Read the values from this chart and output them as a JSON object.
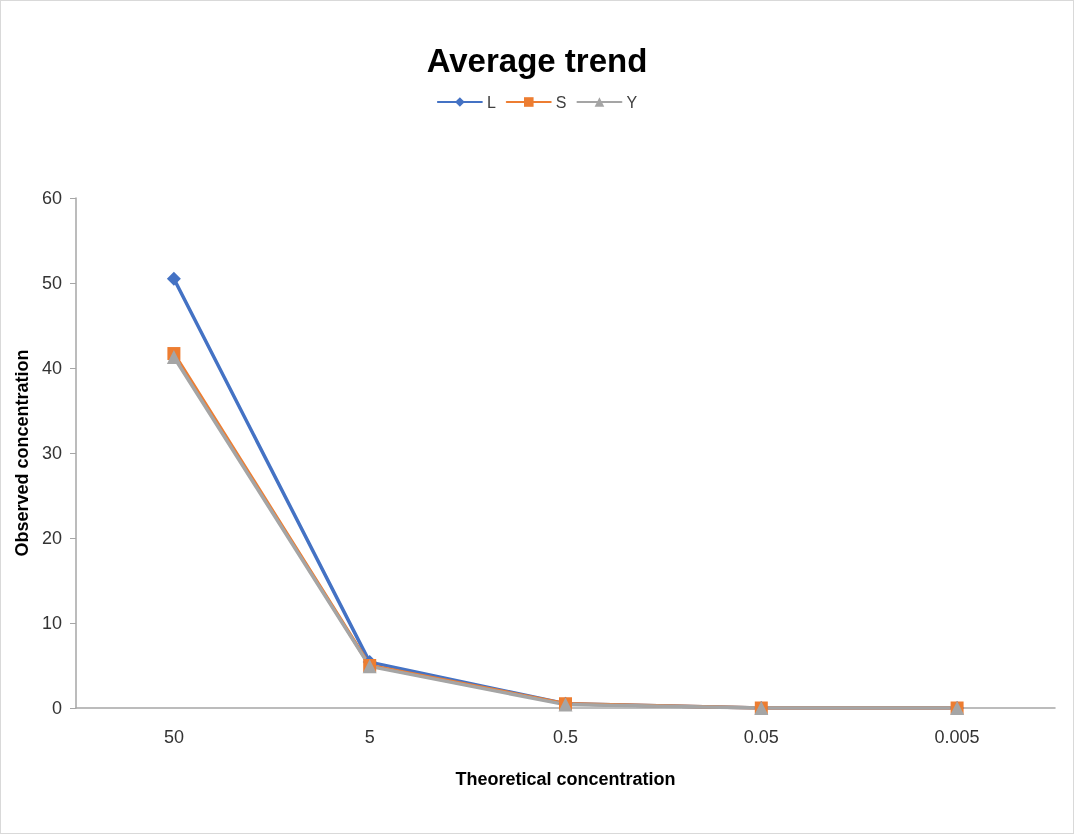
{
  "chart_data": {
    "type": "line",
    "title": "Average trend",
    "xlabel": "Theoretical concentration",
    "ylabel": "Observed concentration",
    "categories": [
      "50",
      "5",
      "0.5",
      "0.05",
      "0.005"
    ],
    "series": [
      {
        "name": "L",
        "color": "#4472c4",
        "marker": "diamond",
        "values": [
          50.5,
          5.4,
          0.5,
          0,
          0
        ]
      },
      {
        "name": "S",
        "color": "#ed7d31",
        "marker": "square",
        "values": [
          41.7,
          5.0,
          0.5,
          0,
          0
        ]
      },
      {
        "name": "Y",
        "color": "#a5a5a5",
        "marker": "triangle",
        "values": [
          41.3,
          4.9,
          0.4,
          0,
          0
        ]
      }
    ],
    "ylim": [
      0,
      60
    ],
    "yticks": [
      0,
      10,
      20,
      30,
      40,
      50,
      60
    ],
    "grid": false,
    "legend": "top",
    "line_style": "solid"
  }
}
